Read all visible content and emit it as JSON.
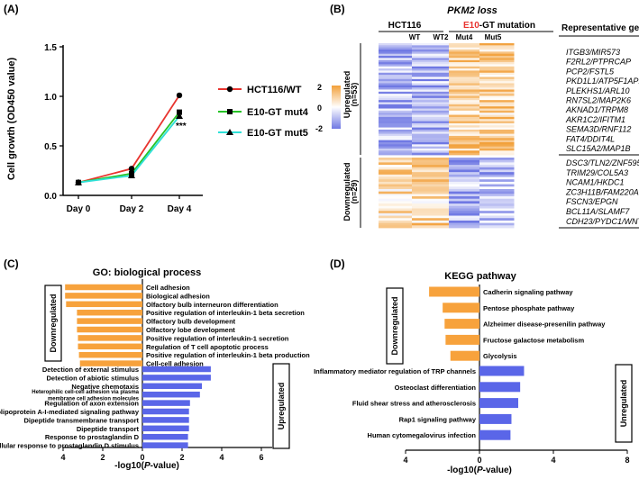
{
  "panel_labels": {
    "a": "(A)",
    "b": "(B)",
    "c": "(C)",
    "d": "(D)"
  },
  "colors": {
    "wt": "#e8342f",
    "mut4": "#27c427",
    "mut5": "#2ee0d8",
    "down": "#f7a23c",
    "up": "#5a66e8",
    "heat_high": "#f2a03a",
    "heat_low": "#6f78e3",
    "heat_mid": "#ffffff"
  },
  "panel_a": {
    "ylabel": "Cell growth (OD450 value)",
    "legend": [
      "HCT116/WT",
      "E10-GT mut4",
      "E10-GT mut5"
    ],
    "significance": "***",
    "chart_data": {
      "type": "line",
      "categories": [
        "Day 0",
        "Day 2",
        "Day 4"
      ],
      "ylim": [
        0.0,
        1.5
      ],
      "yticks": [
        "0.0",
        "0.5",
        "1.0",
        "1.5"
      ],
      "series": [
        {
          "name": "HCT116/WT",
          "values": [
            0.13,
            0.27,
            1.01
          ]
        },
        {
          "name": "E10-GT mut4",
          "values": [
            0.13,
            0.22,
            0.84
          ]
        },
        {
          "name": "E10-GT mut5",
          "values": [
            0.13,
            0.2,
            0.8
          ]
        }
      ]
    }
  },
  "panel_b": {
    "title": "PKM2 loss",
    "group_wt": "HCT116",
    "group_mut_prefix": "E10",
    "group_mut_suffix": "-GT mutation",
    "columns": [
      "WT",
      "WT2",
      "Mut4",
      "Mut5"
    ],
    "rep_genes_header": "Representative genes",
    "up_label": "Upregulated",
    "up_n": "(n=53)",
    "down_label": "Downregulated",
    "down_n": "(n=29)",
    "scale": [
      "2",
      "0",
      "-2"
    ],
    "up_genes": [
      "ITGB3/MIR573",
      "F2RL2/PTPRCAP",
      "PCP2/FSTL5",
      "PKD1L1/ATP5F1AP1",
      "PLEKHS1/ARL10",
      "RN7SL2/MAP2K6",
      "AKNAD1/TRPM8",
      "AKR1C2/IFITM1",
      "SEMA3D/RNF112",
      "FAT4/DDIT4L",
      "SLC15A2/MAP1B"
    ],
    "down_genes": [
      "DSC3/TLN2/ZNF595",
      "TRIM29/COL5A3",
      "NCAM1/HKDC1",
      "ZC3H11B/FAM220A",
      "FSCN3/EPGN",
      "BCL11A/SLAMF7",
      "CDH23/PYDC1/WNT5A"
    ]
  },
  "panel_c": {
    "title": "GO: biological process",
    "down_box": "Downregulated",
    "up_box": "Upregulated",
    "xlabel_prefix": "-log10(",
    "xlabel_italic": "P",
    "xlabel_suffix": "-value)",
    "chart_data": {
      "type": "bar",
      "xticks": [
        "4",
        "2",
        "0",
        "2",
        "4",
        "6"
      ],
      "down_terms": [
        {
          "label": "Cell adhesion",
          "value": 3.9
        },
        {
          "label": "Biological adhesion",
          "value": 3.9
        },
        {
          "label": "Olfactory bulb interneuron differentiation",
          "value": 3.85
        },
        {
          "label": "Positive regulation of interleukin-1 beta secretion",
          "value": 3.3
        },
        {
          "label": "Olfactory bulb development",
          "value": 3.3
        },
        {
          "label": "Olfactory lobe development",
          "value": 3.3
        },
        {
          "label": "Positive regulation of interleukin-1 secretion",
          "value": 3.25
        },
        {
          "label": "Regulation of T cell apoptotic process",
          "value": 3.25
        },
        {
          "label": "Positive regulation of interleukin-1 beta production",
          "value": 3.2
        },
        {
          "label": "Cell-cell adhesion",
          "value": 3.15
        }
      ],
      "up_terms": [
        {
          "label": "Detection of external stimulus",
          "value": 3.45
        },
        {
          "label": "Detection of abiotic stimulus",
          "value": 3.45
        },
        {
          "label": "Negative chemotaxis",
          "value": 3.0
        },
        {
          "label": "Heterophilic cell-cell adhesion via plasma membrane cell adhesion molecules",
          "value": 2.9
        },
        {
          "label": "Regulation of axon extension",
          "value": 2.4
        },
        {
          "label": "Apolipoprotein A-I-mediated signaling pathway",
          "value": 2.35
        },
        {
          "label": "Dipeptide transmembrane transport",
          "value": 2.35
        },
        {
          "label": "Dipeptide transport",
          "value": 2.35
        },
        {
          "label": "Response to prostaglandin D",
          "value": 2.3
        },
        {
          "label": "Cellular response to prostaglandin D stimulus",
          "value": 2.3
        }
      ]
    }
  },
  "panel_d": {
    "title": "KEGG pathway",
    "down_box": "Downregulated",
    "up_box": "Unregulated",
    "xlabel_prefix": "-log10(",
    "xlabel_italic": "P",
    "xlabel_suffix": "-value)",
    "chart_data": {
      "type": "bar",
      "xticks": [
        "4",
        "0",
        "4",
        "8"
      ],
      "down_terms": [
        {
          "label": "Cadherin signaling pathway",
          "value": 2.6
        },
        {
          "label": "Pentose phosphate pathway",
          "value": 1.9
        },
        {
          "label": "Alzheimer disease-presenilin pathway",
          "value": 1.8
        },
        {
          "label": "Fructose galactose metabolism",
          "value": 1.75
        },
        {
          "label": "Glycolysis",
          "value": 1.5
        }
      ],
      "up_terms": [
        {
          "label": "Inflammatory mediator regulation of TRP channels",
          "value": 2.3
        },
        {
          "label": "Osteoclast differentiation",
          "value": 2.1
        },
        {
          "label": "Fluid shear stress and atherosclerosis",
          "value": 2.0
        },
        {
          "label": "Rap1 signaling pathway",
          "value": 1.65
        },
        {
          "label": "Human cytomegalovirus infection",
          "value": 1.6
        }
      ]
    }
  }
}
